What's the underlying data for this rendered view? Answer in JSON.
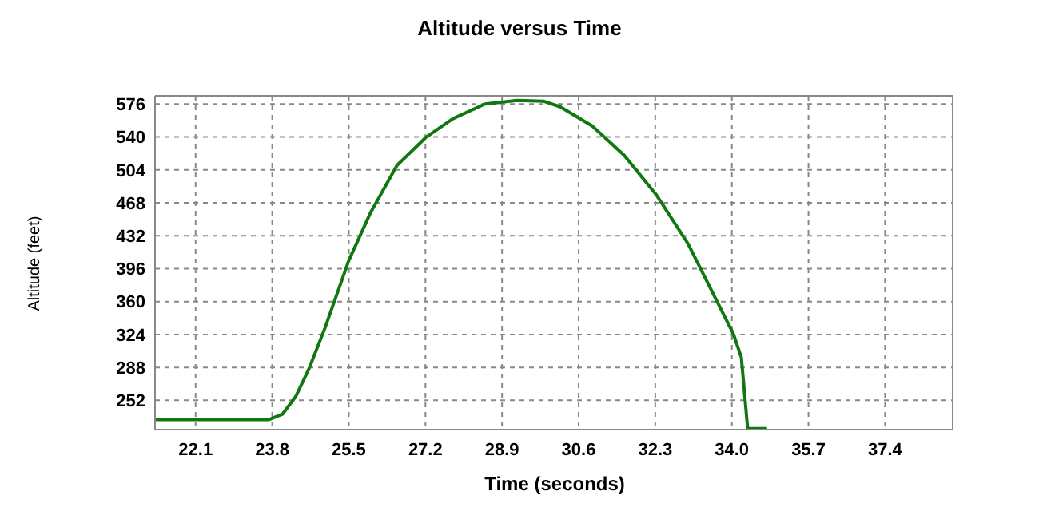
{
  "chart_data": {
    "type": "line",
    "title": "Altitude versus Time",
    "xlabel": "Time (seconds)",
    "ylabel": "Altitude (feet)",
    "x": [
      21.21,
      23.73,
      24.03,
      24.32,
      24.62,
      24.97,
      25.5,
      25.98,
      26.57,
      27.22,
      27.81,
      28.52,
      29.23,
      29.83,
      30.19,
      30.9,
      31.61,
      32.32,
      33.03,
      33.62,
      34.03,
      34.21,
      34.35,
      34.78
    ],
    "series": [
      {
        "color": "#117711",
        "values": [
          231,
          231,
          237,
          256,
          287,
          331,
          405,
          457,
          509,
          540,
          560,
          576,
          580,
          579,
          573,
          552,
          520,
          477,
          423,
          365,
          325,
          299,
          221,
          221
        ]
      }
    ],
    "xlim": [
      21.2,
      38.9
    ],
    "xticks": [
      22.1,
      23.8,
      25.5,
      27.2,
      28.9,
      30.6,
      32.3,
      {
        "value": 34,
        "label": "34.0"
      },
      35.7,
      37.4
    ],
    "ylim": [
      220,
      585
    ],
    "yticks": [
      252,
      288,
      324,
      360,
      396,
      432,
      468,
      504,
      540,
      576
    ],
    "grid": true,
    "line_style": "solid",
    "marker": "none"
  }
}
